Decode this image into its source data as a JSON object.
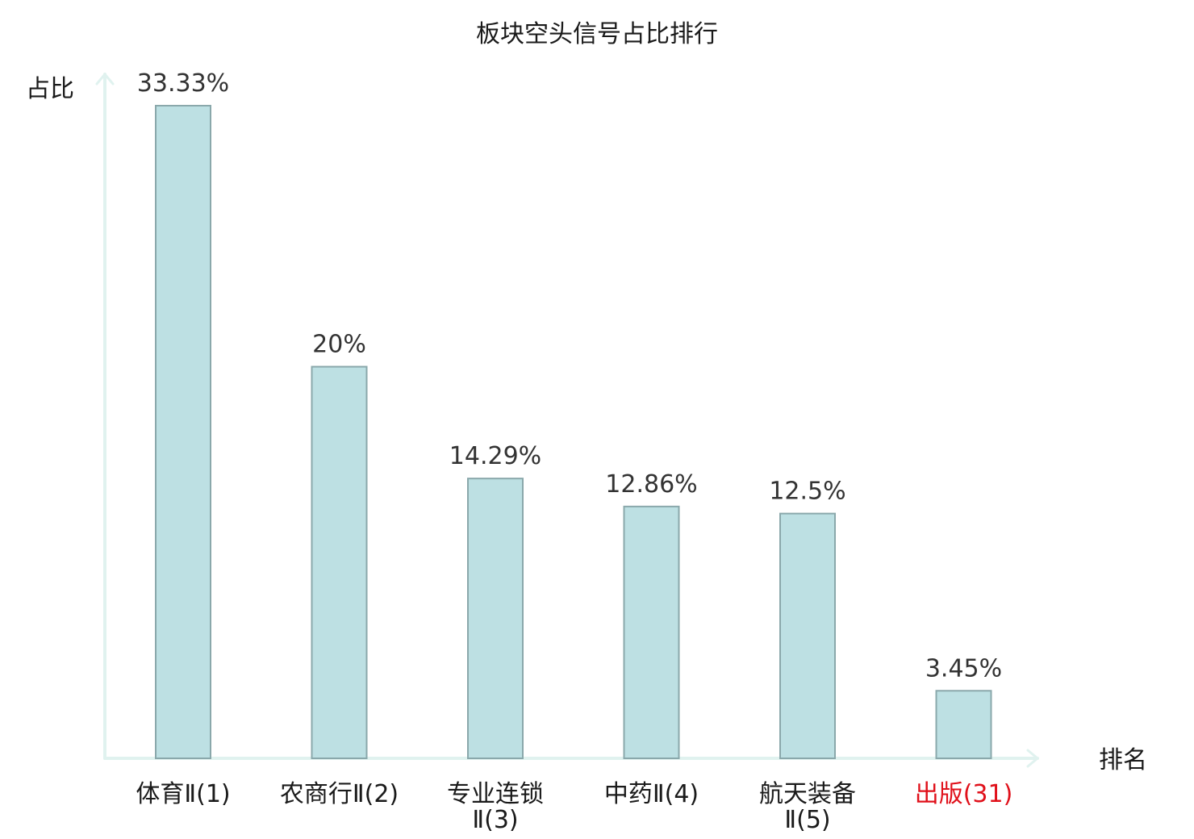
{
  "chart_data": {
    "type": "bar",
    "title": "板块空头信号占比排行",
    "ylabel": "占比",
    "xlabel": "排名",
    "categories": [
      [
        "体育Ⅱ(1)"
      ],
      [
        "农商行Ⅱ(2)"
      ],
      [
        "专业连锁",
        "Ⅱ(3)"
      ],
      [
        "中药Ⅱ(4)"
      ],
      [
        "航天装备",
        "Ⅱ(5)"
      ],
      [
        "出版(31)"
      ]
    ],
    "values": [
      33.33,
      20,
      14.29,
      12.86,
      12.5,
      3.45
    ],
    "value_labels": [
      "33.33%",
      "20%",
      "14.29%",
      "12.86%",
      "12.5%",
      "3.45%"
    ],
    "ylim": [
      0,
      33.33
    ],
    "highlighted_category_index": 5,
    "grid": false,
    "legend": "none"
  },
  "colors": {
    "bar_fill": "#bde0e3",
    "bar_stroke": "#8aa8ab",
    "axis": "#e0f2ef",
    "tick_text": "#1a1a1a",
    "highlight_text": "#e0101a"
  }
}
